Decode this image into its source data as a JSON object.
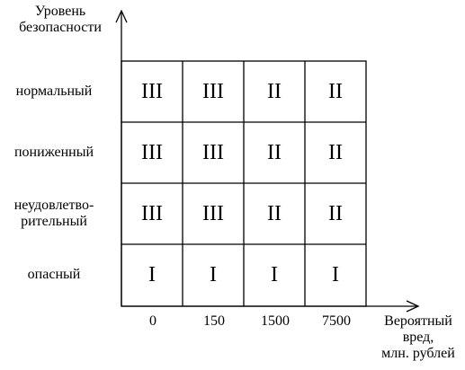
{
  "y_axis_label": [
    "Уровень",
    "безопасности"
  ],
  "x_axis_label": [
    "Вероятный",
    "вред,",
    "млн. рублей"
  ],
  "rows": [
    "нормальный",
    "пониженный",
    [
      "неудовлетво-",
      "рительный"
    ],
    "опасный"
  ],
  "columns": [
    "0",
    "150",
    "1500",
    "7500"
  ],
  "grid": [
    [
      "III",
      "III",
      "II",
      "II"
    ],
    [
      "III",
      "III",
      "II",
      "II"
    ],
    [
      "III",
      "III",
      "II",
      "II"
    ],
    [
      "I",
      "I",
      "I",
      "I"
    ]
  ],
  "colors": {
    "line": "#000000",
    "background": "#ffffff"
  }
}
